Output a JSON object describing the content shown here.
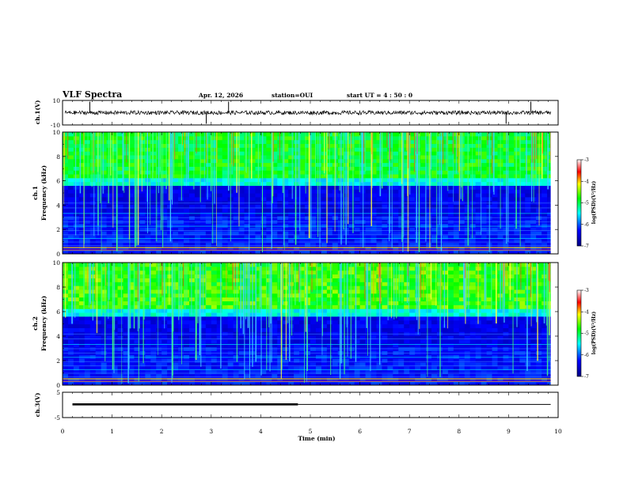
{
  "header": {
    "title": "VLF Spectra",
    "date": "Apr. 12, 2026",
    "station": "station=OUI",
    "start": "start  UT =   4 : 50 : 0"
  },
  "chart_data": [
    {
      "type": "line",
      "name": "ch1-waveform",
      "ylabel": "ch.1(V)",
      "ylim": [
        -10,
        10
      ],
      "ytick_labels": [
        "10",
        "-10"
      ],
      "baseline": 0,
      "description_series": "noisy waveform near 0 V with occasional spikes",
      "spike_times_min": [
        0.55,
        2.9,
        3.35,
        8.95,
        9.45
      ]
    },
    {
      "type": "heatmap",
      "name": "ch1-spectrogram",
      "ylabel_line1": "ch.1",
      "ylabel_line2": "Frequency (kHz)",
      "ylim": [
        0,
        10
      ],
      "ytick_labels": [
        "0",
        "2",
        "4",
        "6",
        "8",
        "10"
      ],
      "colorbar_label": "log(PSD)(V²/Hz)",
      "colorbar_range": [
        -7,
        -3
      ],
      "colorbar_ticks": [
        "-3",
        "-4",
        "-5",
        "-6",
        "-7"
      ]
    },
    {
      "type": "heatmap",
      "name": "ch2-spectrogram",
      "ylabel_line1": "ch.2",
      "ylabel_line2": "Frequency (kHz)",
      "ylim": [
        0,
        10
      ],
      "ytick_labels": [
        "0",
        "2",
        "4",
        "6",
        "8",
        "10"
      ],
      "colorbar_label": "log(PSD)(V²/Hz)",
      "colorbar_range": [
        -7,
        -3
      ],
      "colorbar_ticks": [
        "-3",
        "-4",
        "-5",
        "-6",
        "-7"
      ]
    },
    {
      "type": "line",
      "name": "ch3-signal",
      "ylabel": "ch.3(V)",
      "ylim": [
        -5,
        5
      ],
      "ytick_labels": [
        "5",
        "-5"
      ],
      "segments": [
        {
          "x": [
            0.2,
            4.75
          ],
          "y": 0.2,
          "style": "thick"
        },
        {
          "x": [
            4.75,
            9.85
          ],
          "y": 0.2,
          "style": "thin"
        }
      ]
    }
  ],
  "xaxis": {
    "label": "Time (min)",
    "range": [
      0,
      10
    ],
    "tick_labels": [
      "0",
      "1",
      "2",
      "3",
      "4",
      "5",
      "6",
      "7",
      "8",
      "9",
      "10"
    ]
  },
  "colors": {
    "low": "#00008b",
    "mid": "#00ff66",
    "high": "#ff0000",
    "axis": "#000000"
  }
}
